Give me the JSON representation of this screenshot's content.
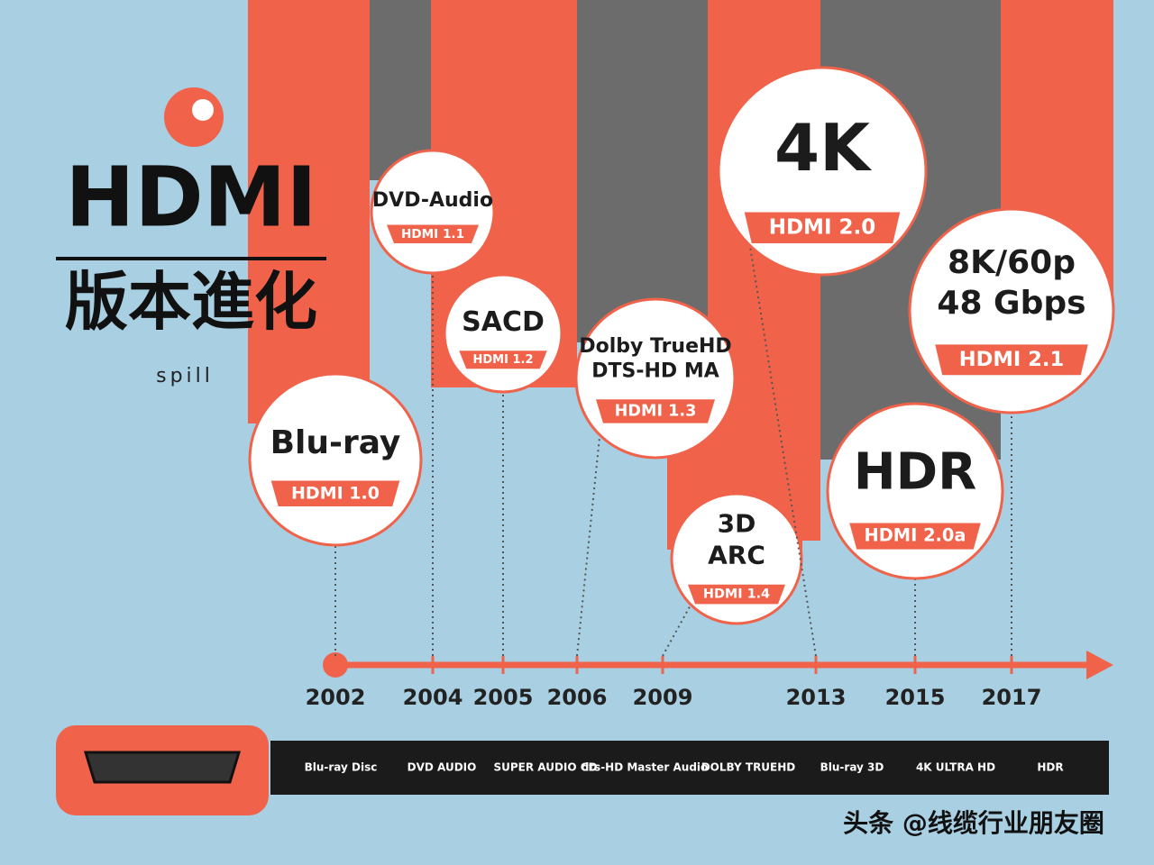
{
  "header": {
    "title": "HDMI",
    "subtitle": "版本進化",
    "brand": "spill"
  },
  "milestones": [
    {
      "lines": [
        "Blu-ray"
      ],
      "version": "HDMI 1.0"
    },
    {
      "lines": [
        "DVD-Audio"
      ],
      "version": "HDMI 1.1"
    },
    {
      "lines": [
        "SACD"
      ],
      "version": "HDMI 1.2"
    },
    {
      "lines": [
        "Dolby TrueHD",
        "DTS-HD MA"
      ],
      "version": "HDMI 1.3"
    },
    {
      "lines": [
        "3D",
        "ARC"
      ],
      "version": "HDMI 1.4"
    },
    {
      "lines": [
        "4K"
      ],
      "version": "HDMI 2.0"
    },
    {
      "lines": [
        "HDR"
      ],
      "version": "HDMI 2.0a"
    },
    {
      "lines": [
        "8K/60p",
        "48 Gbps"
      ],
      "version": "HDMI 2.1"
    }
  ],
  "timeline": {
    "years": [
      "2002",
      "2004",
      "2005",
      "2006",
      "2009",
      "2013",
      "2015",
      "2017"
    ]
  },
  "logos": [
    "Blu-ray Disc",
    "DVD AUDIO",
    "SUPER AUDIO CD",
    "dts-HD Master Audio",
    "DOLBY TRUEHD",
    "Blu-ray 3D",
    "4K ULTRA HD",
    "HDR"
  ],
  "watermark": "头条 @线缆行业朋友圈"
}
